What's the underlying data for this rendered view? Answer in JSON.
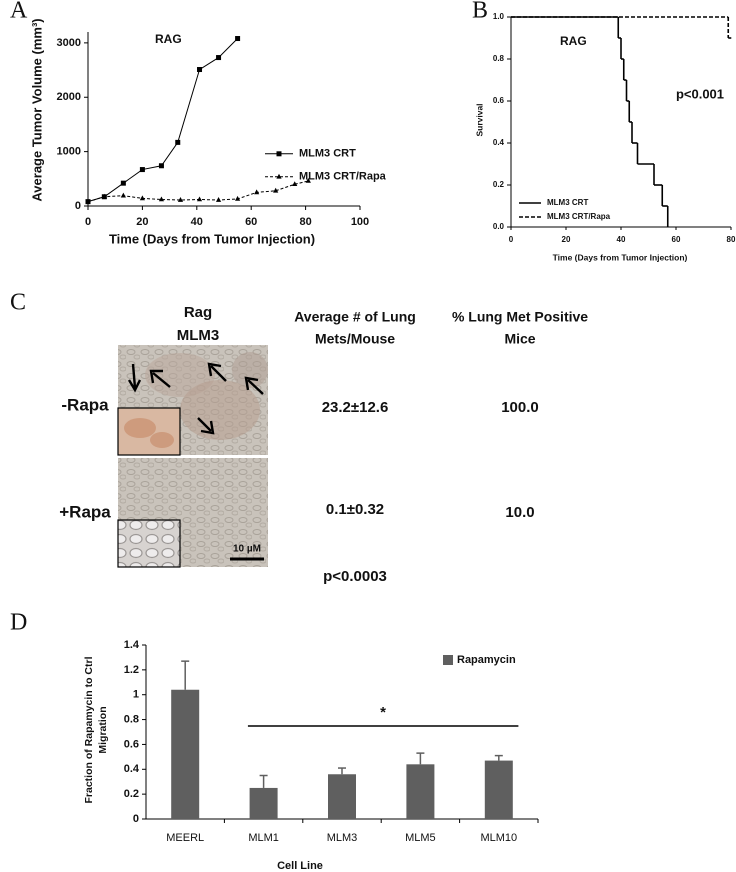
{
  "chart_data": [
    {
      "type": "line",
      "panel": "A",
      "title": "RAG",
      "x_label": "Time (Days from Tumor  Injection)",
      "y_label": "Average Tumor Volume (mm³)",
      "xlim": [
        0,
        100
      ],
      "xticks": [
        0,
        20,
        40,
        60,
        80,
        100
      ],
      "ylim": [
        0,
        3200
      ],
      "yticks": [
        0,
        1000,
        2000,
        3000
      ],
      "legend": "center right",
      "grid": false,
      "series": [
        {
          "name": "MLM3 CRT",
          "color": "#000000",
          "marker": "square",
          "dash": false,
          "x": [
            0,
            6,
            13,
            20,
            27,
            33,
            41,
            48,
            55
          ],
          "values": [
            80,
            170,
            420,
            670,
            740,
            1170,
            2510,
            2730,
            3080
          ]
        },
        {
          "name": "MLM3 CRT/Rapa",
          "color": "#000000",
          "marker": "triangle",
          "dash": true,
          "x": [
            0,
            6,
            13,
            20,
            27,
            34,
            41,
            48,
            55,
            62,
            69,
            76,
            81
          ],
          "values": [
            80,
            170,
            190,
            140,
            120,
            110,
            120,
            110,
            130,
            250,
            280,
            400,
            460
          ]
        }
      ]
    },
    {
      "type": "line",
      "step": true,
      "panel": "B",
      "title": "RAG",
      "annotation": "p<0.001",
      "x_label": "Time (Days from Tumor Injection)",
      "y_label": "Survival",
      "xlim": [
        0,
        80
      ],
      "xticks": [
        0,
        20,
        40,
        60,
        80
      ],
      "ylim": [
        0,
        1
      ],
      "yticks": [
        {
          "value": 0,
          "label": "0.0"
        },
        0.2,
        0.4,
        0.6,
        0.8,
        {
          "value": 1,
          "label": "1.0"
        }
      ],
      "legend": "lower left",
      "grid": false,
      "series": [
        {
          "name": "MLM3 CRT",
          "color": "#000000",
          "dash": false,
          "x": [
            0,
            39,
            40,
            41,
            42,
            43,
            44,
            46,
            52,
            55,
            57
          ],
          "values": [
            1,
            0.9,
            0.8,
            0.7,
            0.6,
            0.5,
            0.4,
            0.3,
            0.2,
            0.1,
            0
          ]
        },
        {
          "name": "MLM3 CRT/Rapa",
          "color": "#000000",
          "dash": true,
          "x": [
            0,
            79,
            80
          ],
          "values": [
            1,
            0.9,
            0.9
          ]
        }
      ]
    },
    {
      "type": "bar",
      "panel": "D",
      "annotation": "*",
      "x_label": "Cell Line",
      "y_label": [
        "Fraction of Rapamycin to Ctrl",
        "Migration"
      ],
      "categories": [
        "MEERL",
        "MLM1",
        "MLM3",
        "MLM5",
        "MLM10"
      ],
      "ylim": [
        0,
        1.4
      ],
      "yticks": [
        0,
        0.2,
        0.4,
        0.6,
        0.8,
        1,
        1.2,
        1.4
      ],
      "legend": "upper right",
      "grid": false,
      "series": [
        {
          "name": "Rapamycin",
          "color": "#5f5f5f",
          "values": [
            1.04,
            0.25,
            0.36,
            0.44,
            0.47
          ],
          "error": [
            0.23,
            0.1,
            0.05,
            0.09,
            0.04
          ]
        }
      ]
    }
  ],
  "panel_c": {
    "panel": "C",
    "header": [
      [
        "Rag",
        "MLM3"
      ],
      [
        "Average # of Lung",
        "Mets/Mouse"
      ],
      [
        "% Lung Met Positive",
        "Mice"
      ]
    ],
    "rows": [
      [
        "-Rapa",
        "23.2±12.6",
        "100.0"
      ],
      [
        "+Rapa",
        "0.1±0.32",
        "10.0"
      ]
    ],
    "scale_bar": "10 µM",
    "p_value": "p<0.0003"
  }
}
